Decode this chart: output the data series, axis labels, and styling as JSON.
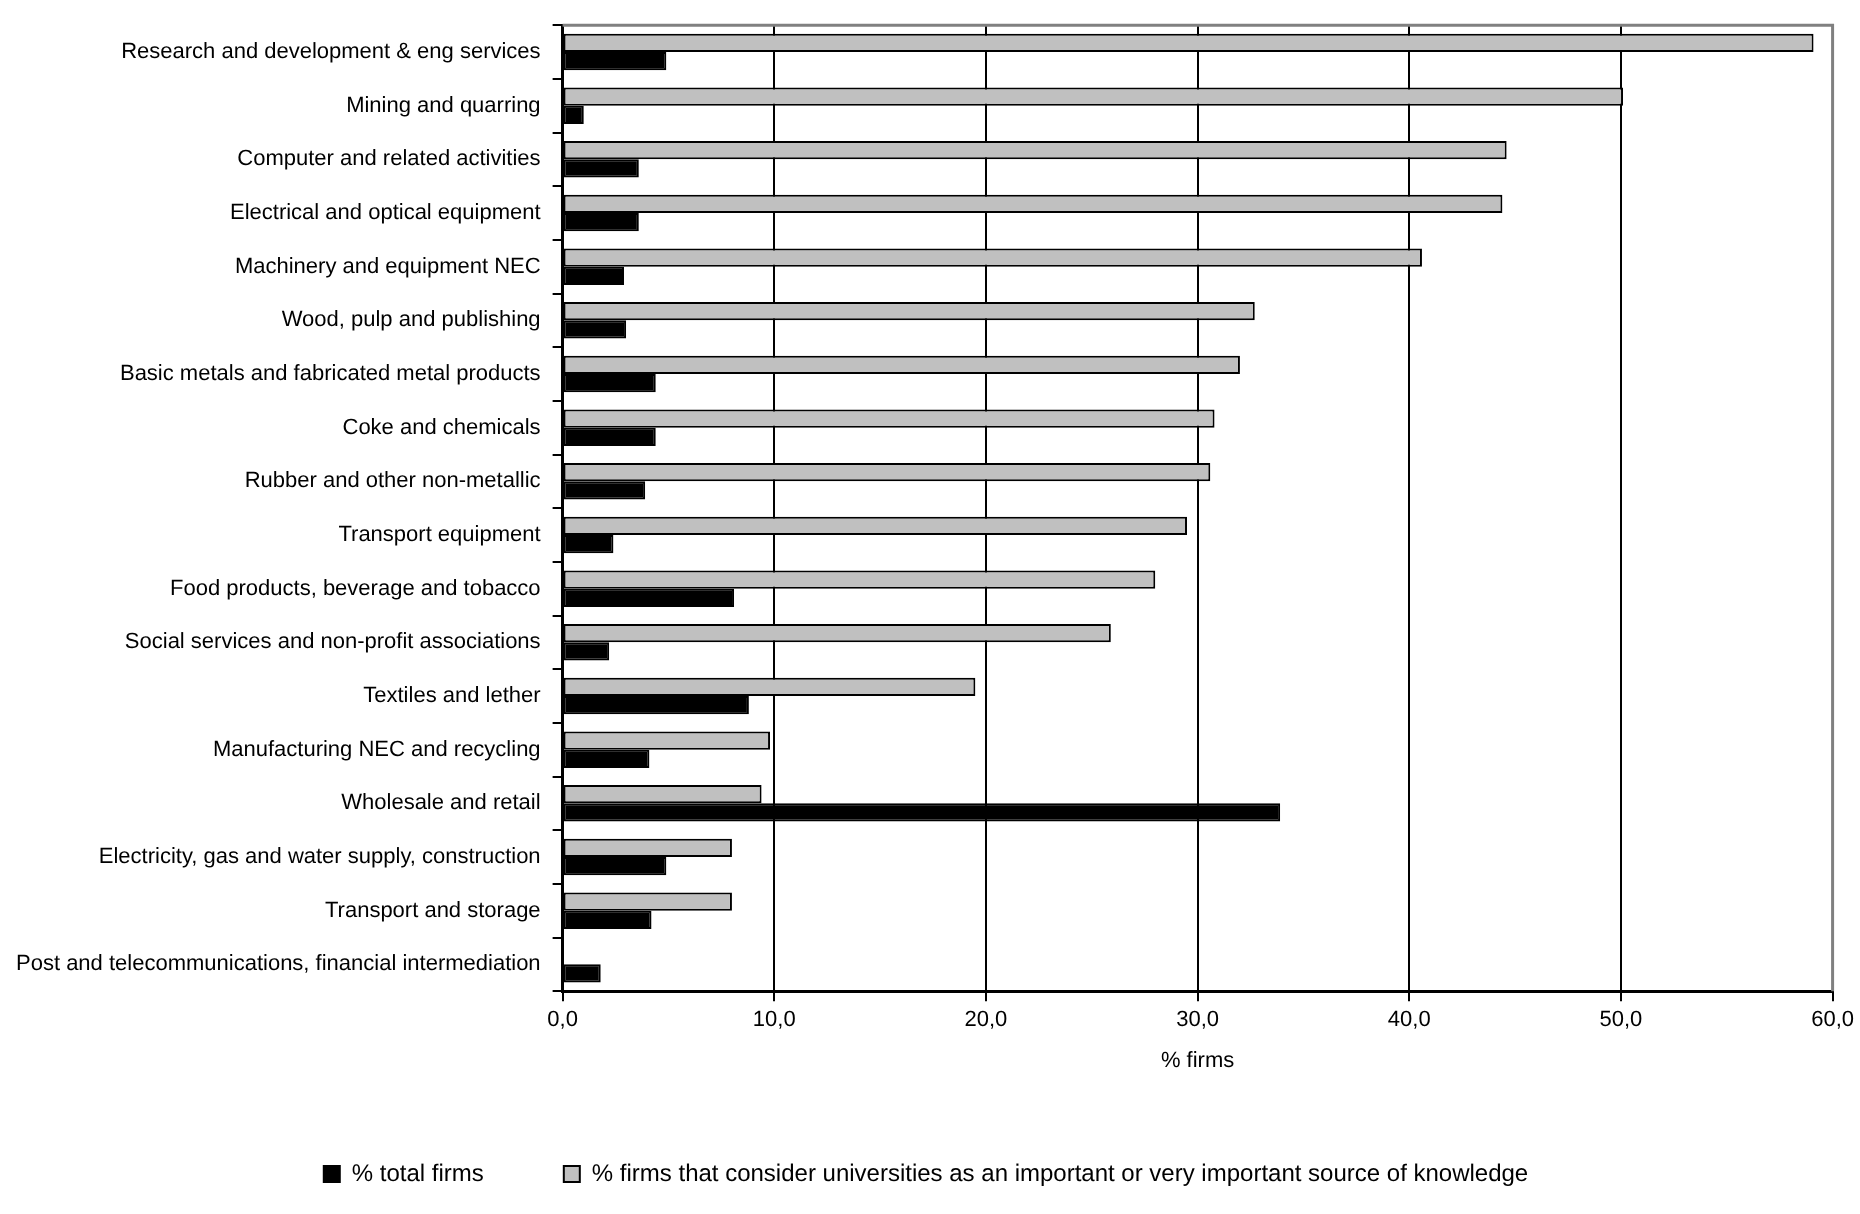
{
  "chart_data": {
    "type": "bar",
    "orientation": "horizontal",
    "xlabel": "% firms",
    "categories": [
      "Research and development & eng services",
      "Mining and quarring",
      "Computer and related activities",
      "Electrical and optical equipment",
      "Machinery and equipment NEC",
      "Wood, pulp and publishing",
      "Basic metals and fabricated metal products",
      "Coke and chemicals",
      "Rubber and other non-metallic",
      "Transport equipment",
      "Food products, beverage and tobacco",
      "Social services and non-profit associations",
      "Textiles and lether",
      "Manufacturing NEC and recycling",
      "Wholesale and retail",
      "Electricity, gas and water supply, construction",
      "Transport and storage",
      "Post and telecommunications, financial intermediation"
    ],
    "series": [
      {
        "name": "% firms that consider universities as an important or very important source of knowledge",
        "color": "#c0c0c0",
        "values": [
          59.1,
          50.1,
          44.6,
          44.4,
          40.6,
          32.7,
          32.0,
          30.8,
          30.6,
          29.5,
          28.0,
          25.9,
          19.5,
          9.8,
          9.4,
          8.0,
          8.0,
          null
        ]
      },
      {
        "name": "% total firms",
        "color": "#000000",
        "values": [
          4.9,
          1.0,
          3.6,
          3.6,
          2.9,
          3.0,
          4.4,
          4.4,
          3.9,
          2.4,
          8.1,
          2.2,
          8.8,
          4.1,
          33.9,
          4.9,
          4.2,
          1.8
        ]
      }
    ],
    "xlim": [
      0,
      60
    ],
    "xticks": [
      {
        "value": 0,
        "label": "0,0"
      },
      {
        "value": 10,
        "label": "10,0"
      },
      {
        "value": 20,
        "label": "20,0"
      },
      {
        "value": 30,
        "label": "30,0"
      },
      {
        "value": 40,
        "label": "40,0"
      },
      {
        "value": 50,
        "label": "50,0"
      },
      {
        "value": 60,
        "label": "60,0"
      }
    ],
    "grid": "x",
    "legend": "bottom"
  }
}
